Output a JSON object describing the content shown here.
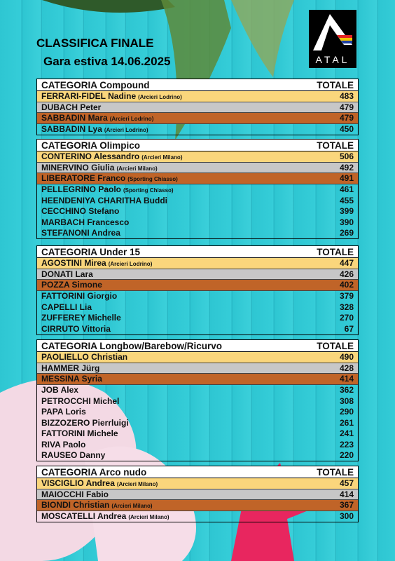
{
  "header": {
    "title": "CLASSIFICA FINALE",
    "subtitle": "Gara estiva 14.06.2025",
    "logo": "ATAL"
  },
  "categories": [
    {
      "name": "CATEGORIA Compound",
      "total_label": "TOTALE",
      "rows": [
        {
          "name": "FERRARI-FIDEL Nadine",
          "club": "(Arcieri Lodrino)",
          "score": "483"
        },
        {
          "name": "DUBACH Peter",
          "score": "479"
        },
        {
          "name": "SABBADIN Mara",
          "club": "(Arcieri Lodrino)",
          "score": "479"
        },
        {
          "name": "SABBADIN Lya",
          "club": "(Arcieri Lodrino)",
          "score": "450"
        }
      ]
    },
    {
      "name": "CATEGORIA Olimpico",
      "total_label": "TOTALE",
      "rows": [
        {
          "name": "CONTERINO Alessandro",
          "club": "(Arcieri Milano)",
          "score": "506"
        },
        {
          "name": "MINERVINO Giulia",
          "club": "(Arcieri Milano)",
          "score": "492"
        },
        {
          "name": "LIBERATORE Franco",
          "club": "(Sporting Chiasso)",
          "score": "491"
        },
        {
          "name": "PELLEGRINO Paolo",
          "club": "(Sporting Chiasso)",
          "score": "461"
        },
        {
          "name": "HEENDENIYA CHARITHA Buddi",
          "score": "455"
        },
        {
          "name": "CECCHINO Stefano",
          "score": "399"
        },
        {
          "name": "MARBACH Francesco",
          "score": "390"
        },
        {
          "name": "STEFANONI Andrea",
          "score": "269"
        }
      ]
    },
    {
      "name": "CATEGORIA Under 15",
      "total_label": "TOTALE",
      "rows": [
        {
          "name": "AGOSTINI Mirea",
          "club": "(Arcieri Lodrino)",
          "score": "447"
        },
        {
          "name": "DONATI Lara",
          "score": "426"
        },
        {
          "name": "POZZA Simone",
          "score": "402"
        },
        {
          "name": "FATTORINI Giorgio",
          "score": "379"
        },
        {
          "name": "CAPELLI Lia",
          "score": "328"
        },
        {
          "name": "ZUFFEREY Michelle",
          "score": "270"
        },
        {
          "name": "CIRRUTO Vittoria",
          "score": "67"
        }
      ]
    },
    {
      "name": "CATEGORIA Longbow/Barebow/Ricurvo",
      "total_label": "TOTALE",
      "rows": [
        {
          "name": "PAOLIELLO Christian",
          "score": "490"
        },
        {
          "name": "HAMMER Jürg",
          "score": "428"
        },
        {
          "name": "MESSINA Syria",
          "score": "414"
        },
        {
          "name": "JOB Alex",
          "score": "362"
        },
        {
          "name": "PETROCCHI Michel",
          "score": "308"
        },
        {
          "name": "PAPA Loris",
          "score": "290"
        },
        {
          "name": "BIZZOZERO Pierrluigi",
          "score": "261"
        },
        {
          "name": "FATTORINI Michele",
          "score": "241"
        },
        {
          "name": "RIVA Paolo",
          "score": "223"
        },
        {
          "name": "RAUSEO Danny",
          "score": "220"
        }
      ]
    },
    {
      "name": "CATEGORIA Arco nudo",
      "total_label": "TOTALE",
      "rows": [
        {
          "name": "VISCIGLIO Andrea",
          "club": "(Arcieri Milano)",
          "score": "457"
        },
        {
          "name": "MAIOCCHI Fabio",
          "score": "414"
        },
        {
          "name": "BIONDI Christian",
          "club": "(Arcieri Milano)",
          "score": "367"
        },
        {
          "name": "MOSCATELLI Andrea",
          "club": "(Arcieri Milano)",
          "score": "300"
        }
      ]
    }
  ]
}
